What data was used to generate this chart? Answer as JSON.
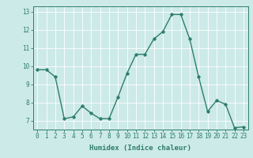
{
  "x": [
    0,
    1,
    2,
    3,
    4,
    5,
    6,
    7,
    8,
    9,
    10,
    11,
    12,
    13,
    14,
    15,
    16,
    17,
    18,
    19,
    20,
    21,
    22,
    23
  ],
  "y": [
    9.8,
    9.8,
    9.4,
    7.1,
    7.2,
    7.8,
    7.4,
    7.1,
    7.1,
    8.3,
    9.6,
    10.65,
    10.65,
    11.5,
    11.9,
    12.85,
    12.85,
    11.5,
    9.4,
    7.5,
    8.1,
    7.9,
    6.6,
    6.65
  ],
  "line_color": "#2e7d6e",
  "marker": "D",
  "markersize": 1.8,
  "linewidth": 1.0,
  "bg_color": "#cceae7",
  "grid_color": "#ffffff",
  "axis_color": "#2e7d6e",
  "tick_color": "#2e7d6e",
  "xlabel": "Humidex (Indice chaleur)",
  "xlabel_fontsize": 6.5,
  "xlabel_color": "#2e7d6e",
  "ylabel_ticks": [
    7,
    8,
    9,
    10,
    11,
    12,
    13
  ],
  "xlim": [
    -0.5,
    23.5
  ],
  "ylim": [
    6.5,
    13.3
  ],
  "xticks": [
    0,
    1,
    2,
    3,
    4,
    5,
    6,
    7,
    8,
    9,
    10,
    11,
    12,
    13,
    14,
    15,
    16,
    17,
    18,
    19,
    20,
    21,
    22,
    23
  ],
  "tick_fontsize": 5.5
}
